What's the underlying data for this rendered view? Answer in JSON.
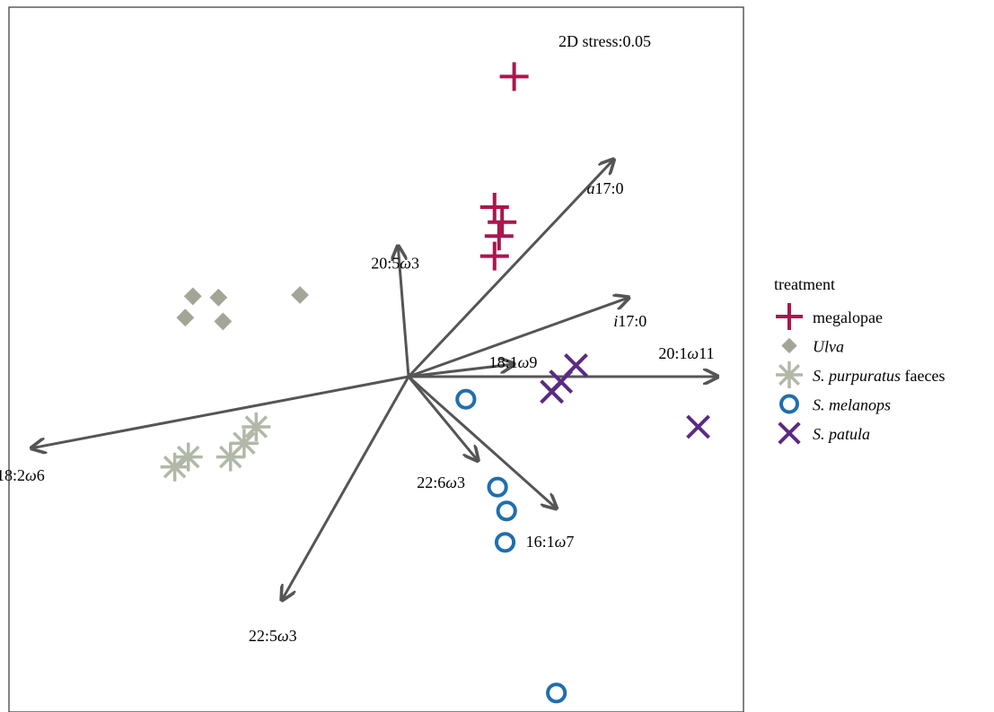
{
  "chart_data": {
    "type": "scatter",
    "title": "",
    "xlabel": "",
    "ylabel": "",
    "xlim": [
      -3.0,
      2.8
    ],
    "ylim": [
      -2.6,
      2.9
    ],
    "annotation": "2D stress:0.05",
    "legend": {
      "title": "treatment",
      "placement": "right"
    },
    "series": [
      {
        "name": "megalopae",
        "marker": "plus",
        "color": "#A8174E",
        "points": [
          [
            0.7,
            2.39
          ],
          [
            0.57,
            1.35
          ],
          [
            0.62,
            1.23
          ],
          [
            0.6,
            1.12
          ],
          [
            0.57,
            0.96
          ]
        ]
      },
      {
        "name": "Ulva",
        "italic": true,
        "marker": "diamond",
        "color": "#A3A696",
        "points": [
          [
            -1.43,
            0.64
          ],
          [
            -1.26,
            0.63
          ],
          [
            -0.72,
            0.65
          ],
          [
            -1.48,
            0.47
          ],
          [
            -1.23,
            0.44
          ]
        ]
      },
      {
        "name": "S. purpuratus faeces",
        "italic_part": "S. purpuratus",
        "plain_part": " faeces",
        "marker": "asterisk",
        "color": "#B2B8A8",
        "points": [
          [
            -1.01,
            -0.4
          ],
          [
            -1.09,
            -0.53
          ],
          [
            -1.18,
            -0.64
          ],
          [
            -1.46,
            -0.64
          ],
          [
            -1.55,
            -0.72
          ]
        ]
      },
      {
        "name": "S. melanops",
        "italic": true,
        "marker": "circle",
        "color": "#1F6FAE",
        "points": [
          [
            0.38,
            -0.18
          ],
          [
            0.59,
            -0.88
          ],
          [
            0.65,
            -1.07
          ],
          [
            0.64,
            -1.32
          ],
          [
            0.98,
            -2.52
          ]
        ]
      },
      {
        "name": "S. patula",
        "italic": true,
        "marker": "x",
        "color": "#5A2A83",
        "points": [
          [
            1.11,
            0.09
          ],
          [
            1.01,
            -0.04
          ],
          [
            0.95,
            -0.12
          ],
          [
            1.92,
            -0.4
          ]
        ]
      }
    ],
    "vectors": [
      {
        "label": "a17:0",
        "label_italic_prefix": "a",
        "label_rest": "17:0",
        "end": [
          1.36,
          1.73
        ]
      },
      {
        "label": "20:5ω3",
        "end": [
          -0.07,
          1.04
        ]
      },
      {
        "label": "i17:0",
        "label_italic_prefix": "i",
        "label_rest": "17:0",
        "end": [
          1.46,
          0.63
        ]
      },
      {
        "label": "18:1ω9",
        "end": [
          0.7,
          0.1
        ]
      },
      {
        "label": "20:1ω11",
        "end": [
          2.05,
          0.0
        ]
      },
      {
        "label": "22:6ω3",
        "end": [
          0.46,
          -0.67
        ]
      },
      {
        "label": "16:1ω7",
        "end": [
          0.98,
          -1.05
        ]
      },
      {
        "label": "18:2ω6",
        "end": [
          -2.5,
          -0.57
        ]
      },
      {
        "label": "22:5ω3",
        "end": [
          -0.84,
          -1.78
        ]
      }
    ]
  }
}
